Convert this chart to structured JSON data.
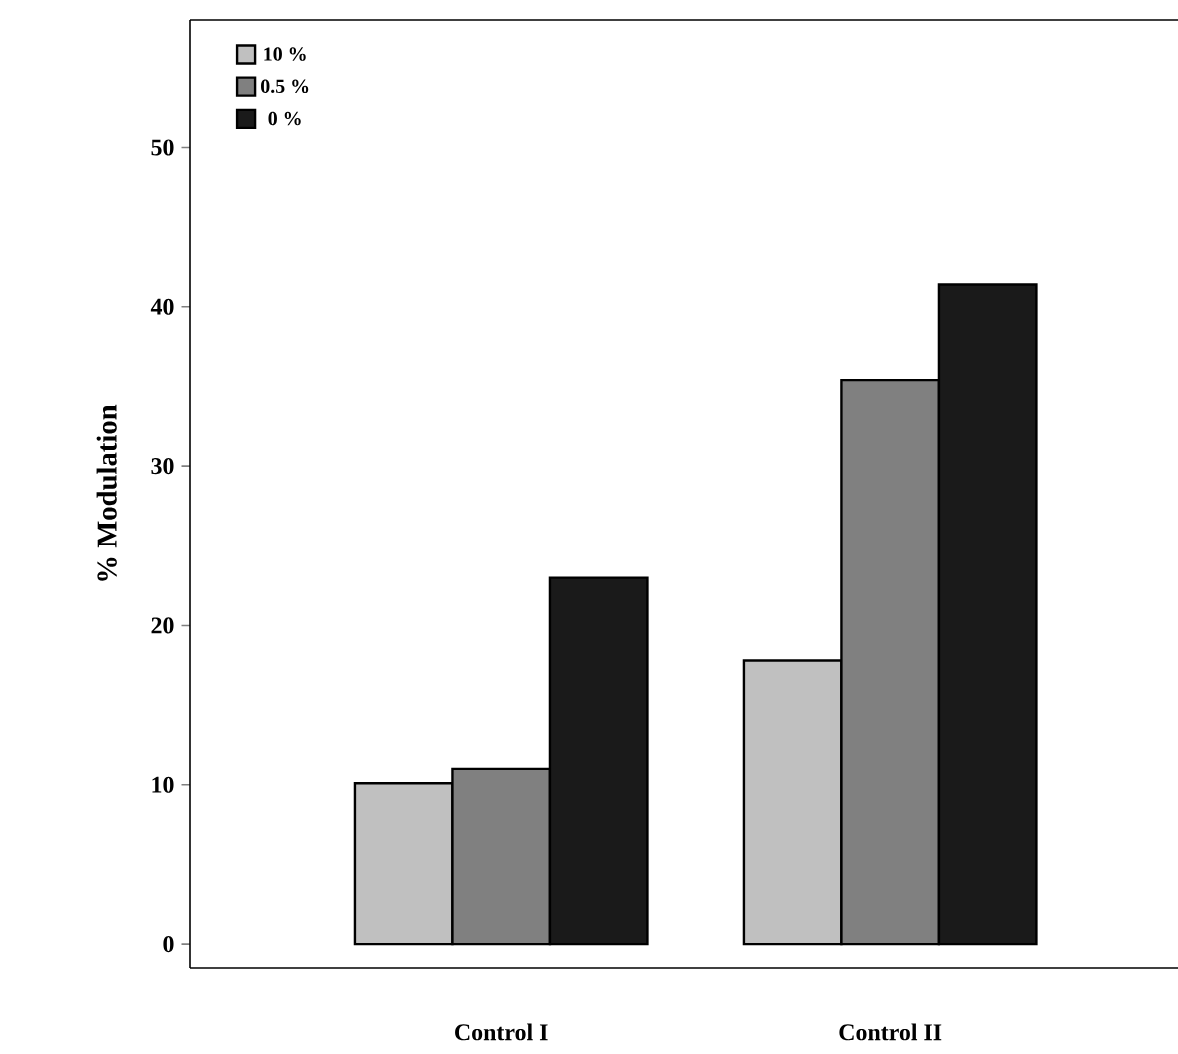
{
  "chart_data": {
    "type": "bar",
    "ylabel": "% Modulation",
    "categories": [
      "Control I",
      "Control II"
    ],
    "series": [
      {
        "name": "10 %",
        "color": "#c0c0c0",
        "values": [
          10.1,
          17.8
        ]
      },
      {
        "name": "0.5 %",
        "color": "#808080",
        "values": [
          11.0,
          35.4
        ]
      },
      {
        "name": "0 %",
        "color": "#1a1a1a",
        "values": [
          23.0,
          41.4
        ]
      }
    ],
    "ylim": [
      -1.5,
      58
    ],
    "yticks": [
      0,
      10,
      20,
      30,
      40,
      50
    ],
    "legend": "top left",
    "grid": false
  }
}
